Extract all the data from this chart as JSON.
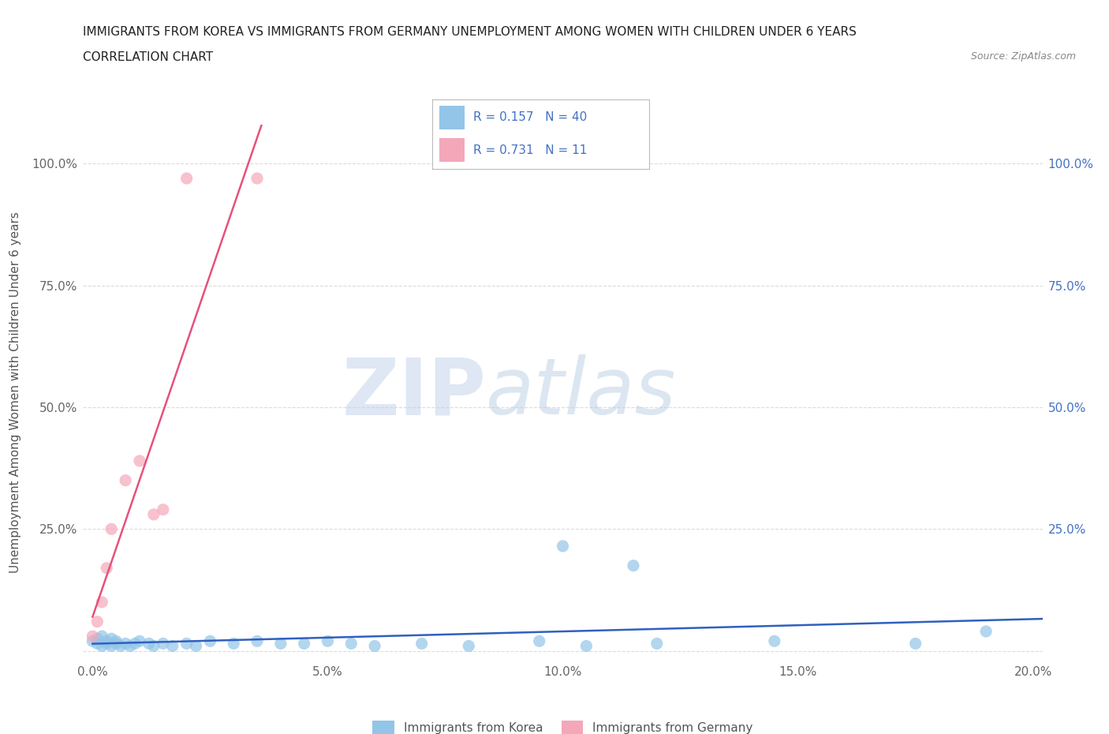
{
  "title_line1": "IMMIGRANTS FROM KOREA VS IMMIGRANTS FROM GERMANY UNEMPLOYMENT AMONG WOMEN WITH CHILDREN UNDER 6 YEARS",
  "title_line2": "CORRELATION CHART",
  "source": "Source: ZipAtlas.com",
  "ylabel_label": "Unemployment Among Women with Children Under 6 years",
  "background_color": "#ffffff",
  "plot_bg_color": "#ffffff",
  "korea_color": "#92C5E8",
  "germany_color": "#F4A7B9",
  "korea_line_color": "#3060C0",
  "germany_line_color": "#E8507A",
  "korea_R": 0.157,
  "korea_N": 40,
  "germany_R": 0.731,
  "germany_N": 11,
  "xlim": [
    -0.002,
    0.202
  ],
  "ylim": [
    -0.02,
    1.08
  ],
  "xticks": [
    0.0,
    0.05,
    0.1,
    0.15,
    0.2
  ],
  "yticks": [
    0.0,
    0.25,
    0.5,
    0.75,
    1.0
  ],
  "xticklabels": [
    "0.0%",
    "5.0%",
    "10.0%",
    "15.0%",
    "20.0%"
  ],
  "yticklabels_left": [
    "",
    "25.0%",
    "50.0%",
    "75.0%",
    "100.0%"
  ],
  "yticklabels_right": [
    "",
    "25.0%",
    "50.0%",
    "75.0%",
    "100.0%"
  ],
  "watermark_zip": "ZIP",
  "watermark_atlas": "atlas",
  "korea_scatter_x": [
    0.0,
    0.001,
    0.001,
    0.002,
    0.002,
    0.003,
    0.003,
    0.004,
    0.004,
    0.005,
    0.005,
    0.006,
    0.007,
    0.008,
    0.009,
    0.01,
    0.012,
    0.013,
    0.015,
    0.017,
    0.02,
    0.022,
    0.025,
    0.03,
    0.035,
    0.04,
    0.045,
    0.05,
    0.055,
    0.06,
    0.07,
    0.08,
    0.095,
    0.1,
    0.105,
    0.115,
    0.12,
    0.145,
    0.175,
    0.19
  ],
  "korea_scatter_y": [
    0.02,
    0.015,
    0.025,
    0.01,
    0.03,
    0.015,
    0.02,
    0.01,
    0.025,
    0.015,
    0.02,
    0.01,
    0.015,
    0.01,
    0.015,
    0.02,
    0.015,
    0.01,
    0.015,
    0.01,
    0.015,
    0.01,
    0.02,
    0.015,
    0.02,
    0.015,
    0.015,
    0.02,
    0.015,
    0.01,
    0.015,
    0.01,
    0.02,
    0.215,
    0.01,
    0.175,
    0.015,
    0.02,
    0.015,
    0.04
  ],
  "germany_scatter_x": [
    0.0,
    0.001,
    0.002,
    0.003,
    0.004,
    0.007,
    0.01,
    0.013,
    0.015,
    0.02,
    0.035
  ],
  "germany_scatter_y": [
    0.03,
    0.06,
    0.1,
    0.17,
    0.25,
    0.35,
    0.39,
    0.28,
    0.29,
    0.97,
    0.97
  ]
}
